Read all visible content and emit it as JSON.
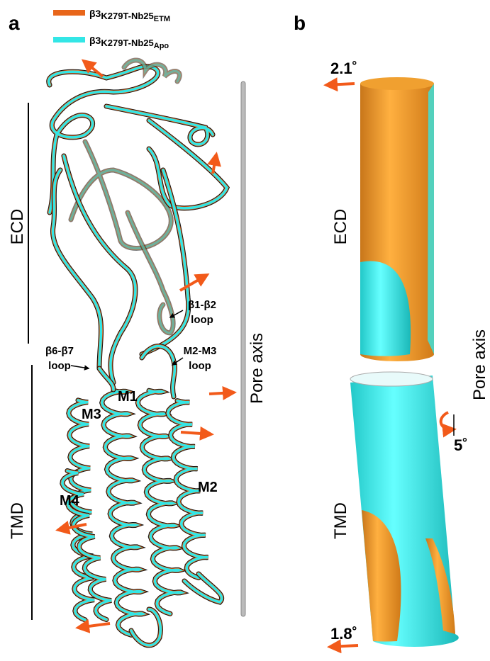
{
  "panel_a": {
    "label": "a",
    "legend": [
      {
        "prefix": "β3",
        "name": "K279T-Nb25",
        "sub": "ETM",
        "color": "#e8661a"
      },
      {
        "prefix": "β3",
        "name": "K279T-Nb25",
        "sub": "Apo",
        "color": "#33e6e6"
      }
    ],
    "domains": [
      "ECD",
      "TMD"
    ],
    "axis_label": "Pore axis",
    "loops": [
      {
        "lines": [
          "β1-β2",
          "loop"
        ]
      },
      {
        "lines": [
          "β6-β7",
          "loop"
        ]
      },
      {
        "lines": [
          "M2-M3",
          "loop"
        ]
      }
    ],
    "helices": [
      "M1",
      "M2",
      "M3",
      "M4"
    ]
  },
  "panel_b": {
    "label": "b",
    "angles": [
      "2.1˚",
      "5˚",
      "1.8˚"
    ],
    "domains": [
      "ECD",
      "TMD"
    ],
    "axis_label": "Pore axis"
  }
}
